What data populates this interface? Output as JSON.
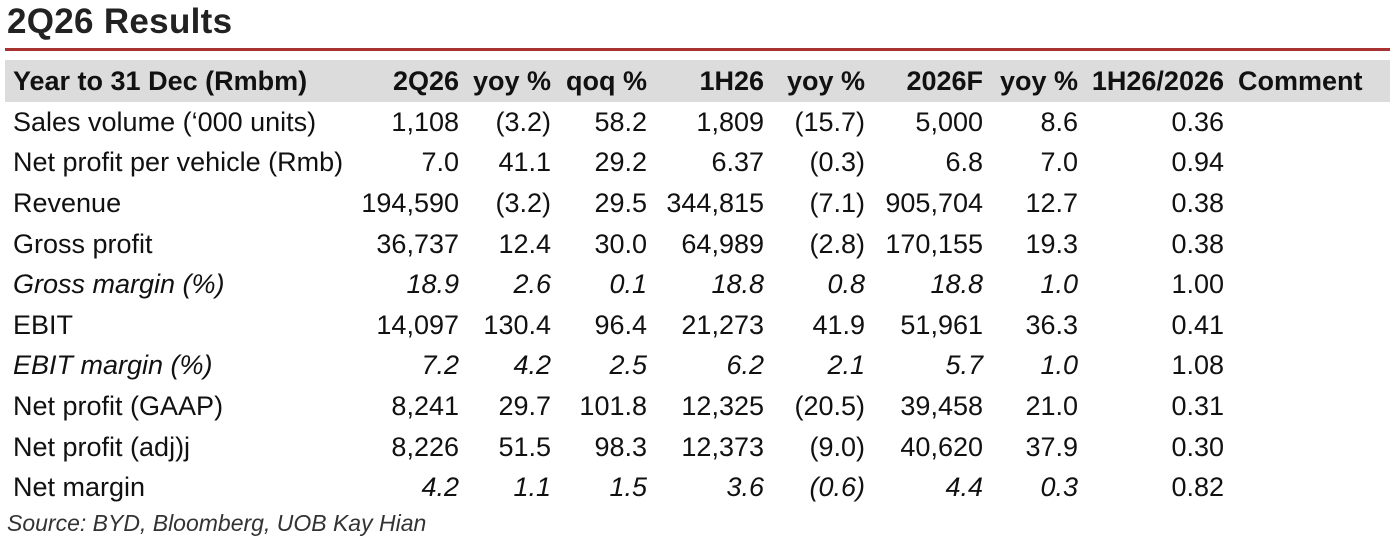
{
  "title": "2Q26 Results",
  "columns": [
    "Year to 31 Dec (Rmbm)",
    "2Q26",
    "yoy %",
    "qoq %",
    "1H26",
    "yoy %",
    "2026F",
    "yoy %",
    "1H26/2026",
    "Comment"
  ],
  "rows": [
    {
      "label": "Sales volume (‘000 units)",
      "cells": [
        "1,108",
        "(3.2)",
        "58.2",
        "1,809",
        "(15.7)",
        "5,000",
        "8.6",
        "0.36",
        ""
      ],
      "italic": false
    },
    {
      "label": "Net profit per vehicle (Rmb)",
      "cells": [
        "7.0",
        "41.1",
        "29.2",
        "6.37",
        "(0.3)",
        "6.8",
        "7.0",
        "0.94",
        ""
      ],
      "italic": false
    },
    {
      "label": "Revenue",
      "cells": [
        "194,590",
        "(3.2)",
        "29.5",
        "344,815",
        "(7.1)",
        "905,704",
        "12.7",
        "0.38",
        ""
      ],
      "italic": false
    },
    {
      "label": "Gross profit",
      "cells": [
        "36,737",
        "12.4",
        "30.0",
        "64,989",
        "(2.8)",
        "170,155",
        "19.3",
        "0.38",
        ""
      ],
      "italic": false
    },
    {
      "label": "Gross margin (%)",
      "cells": [
        "18.9",
        "2.6",
        "0.1",
        "18.8",
        "0.8",
        "18.8",
        "1.0",
        "1.00",
        ""
      ],
      "italic": true
    },
    {
      "label": "EBIT",
      "cells": [
        "14,097",
        "130.4",
        "96.4",
        "21,273",
        "41.9",
        "51,961",
        "36.3",
        "0.41",
        ""
      ],
      "italic": false
    },
    {
      "label": "EBIT margin (%)",
      "cells": [
        "7.2",
        "4.2",
        "2.5",
        "6.2",
        "2.1",
        "5.7",
        "1.0",
        "1.08",
        ""
      ],
      "italic": true
    },
    {
      "label": "Net profit (GAAP)",
      "cells": [
        "8,241",
        "29.7",
        "101.8",
        "12,325",
        "(20.5)",
        "39,458",
        "21.0",
        "0.31",
        ""
      ],
      "italic": false
    },
    {
      "label": "Net profit (adj)j",
      "cells": [
        "8,226",
        "51.5",
        "98.3",
        "12,373",
        "(9.0)",
        "40,620",
        "37.9",
        "0.30",
        ""
      ],
      "italic": false
    },
    {
      "label": "Net margin",
      "cells": [
        "4.2",
        "1.1",
        "1.5",
        "3.6",
        "(0.6)",
        "4.4",
        "0.3",
        "0.82",
        ""
      ],
      "italic": false,
      "italicNumbers": true
    }
  ],
  "source": "Source: BYD, Bloomberg, UOB Kay Hian"
}
